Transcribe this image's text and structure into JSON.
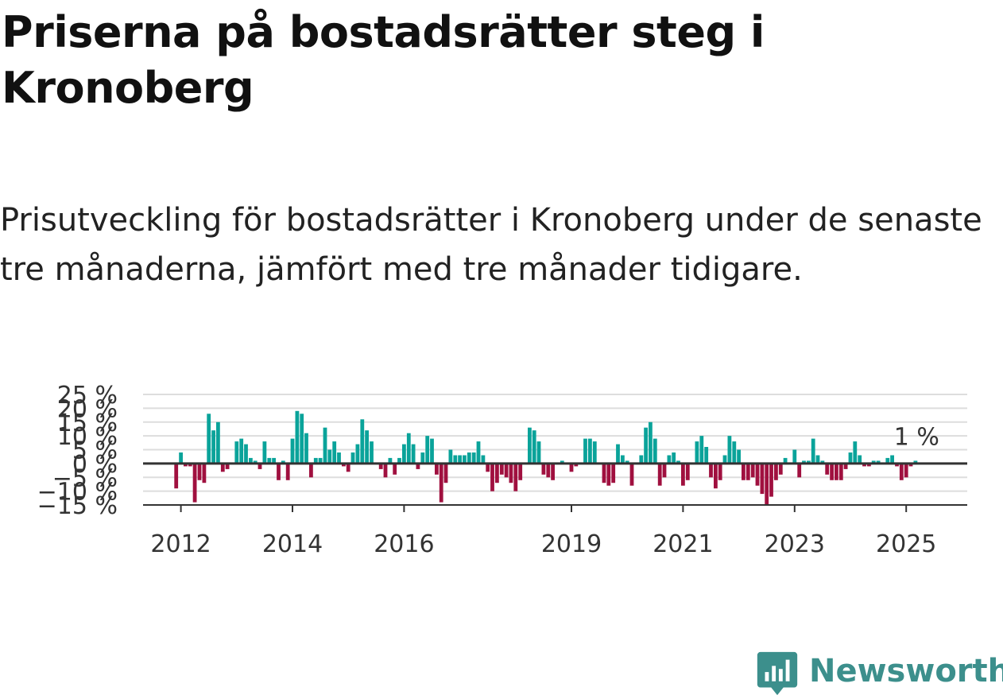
{
  "title": "Priserna på bostadsrätter steg i Kronoberg",
  "subtitle": "Prisutveckling för bostadsrätter i Kronoberg under de senaste tre månaderna, jämfört med tre månader tidigare.",
  "brand": {
    "name": "Newsworthy",
    "color": "#3c8f8c"
  },
  "colors": {
    "positive": "#0aa39a",
    "negative": "#a0103f",
    "grid": "#dddddd",
    "axis": "#333333"
  },
  "chart_data": {
    "type": "bar",
    "title": "Priserna på bostadsrätter steg i Kronoberg",
    "ylabel": "",
    "xlabel": "",
    "y_ticks": [
      -15,
      -10,
      -5,
      0,
      5,
      10,
      15,
      20,
      25
    ],
    "y_tick_labels": [
      "−15 %",
      "−10 %",
      "−5 %",
      "0 %",
      "5 %",
      "10 %",
      "15 %",
      "20 %",
      "25 %"
    ],
    "ylim": [
      -15,
      25
    ],
    "x_ticks": [
      "2012",
      "2014",
      "2016",
      "2019",
      "2021",
      "2023",
      "2025"
    ],
    "grid": true,
    "start": "2011-12",
    "latest_label": "1 %",
    "values": [
      -9,
      4,
      -1,
      -1,
      -14,
      -6,
      -7,
      18,
      12,
      15,
      -3,
      -2,
      0,
      8,
      9,
      7,
      2,
      1,
      -2,
      8,
      2,
      2,
      -6,
      1,
      -6,
      9,
      19,
      18,
      11,
      -5,
      2,
      2,
      13,
      5,
      8,
      4,
      -1,
      -3,
      4,
      7,
      16,
      12,
      8,
      0,
      -2,
      -5,
      2,
      -4,
      2,
      7,
      11,
      7,
      -2,
      4,
      10,
      9,
      -4,
      -14,
      -7,
      5,
      3,
      3,
      3,
      4,
      4,
      8,
      3,
      -3,
      -10,
      -7,
      -4,
      -5,
      -7,
      -10,
      -6,
      0,
      13,
      12,
      8,
      -4,
      -5,
      -6,
      0,
      1,
      0,
      -3,
      -1,
      0,
      9,
      9,
      8,
      0,
      -7,
      -8,
      -7,
      7,
      3,
      1,
      -8,
      0,
      3,
      13,
      15,
      9,
      -8,
      -5,
      3,
      4,
      1,
      -8,
      -6,
      0,
      8,
      10,
      6,
      -5,
      -9,
      -6,
      3,
      10,
      8,
      5,
      -6,
      -6,
      -5,
      -8,
      -11,
      -15,
      -12,
      -6,
      -4,
      2,
      0,
      5,
      -5,
      1,
      1,
      9,
      3,
      1,
      -4,
      -6,
      -6,
      -6,
      -2,
      4,
      8,
      3,
      -1,
      -1,
      1,
      1,
      0,
      2,
      3,
      -1,
      -6,
      -5,
      -1,
      1
    ]
  }
}
